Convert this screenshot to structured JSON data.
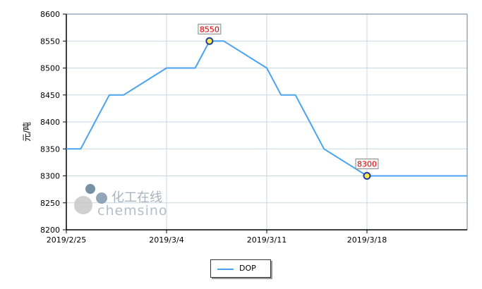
{
  "chart_data": {
    "type": "line",
    "title": "",
    "xlabel": "",
    "ylabel": "元/吨",
    "ylim": [
      8200,
      8600
    ],
    "yticks": [
      8200,
      8250,
      8300,
      8350,
      8400,
      8450,
      8500,
      8550,
      8600
    ],
    "xticks": [
      "2019/2/25",
      "2019/3/4",
      "2019/3/11",
      "2019/3/18"
    ],
    "grid": true,
    "legend_position": "bottom",
    "series": [
      {
        "name": "DOP",
        "color": "#4aa3f0",
        "x": [
          "2019/2/25",
          "2019/2/26",
          "2019/2/27",
          "2019/2/28",
          "2019/3/1",
          "2019/3/4",
          "2019/3/5",
          "2019/3/6",
          "2019/3/7",
          "2019/3/8",
          "2019/3/11",
          "2019/3/12",
          "2019/3/13",
          "2019/3/14",
          "2019/3/15",
          "2019/3/18",
          "2019/3/19",
          "2019/3/20",
          "2019/3/21",
          "2019/3/22",
          "2019/3/25"
        ],
        "y": [
          8350,
          8350,
          8400,
          8450,
          8450,
          8500,
          8500,
          8500,
          8550,
          8550,
          8500,
          8450,
          8450,
          8400,
          8350,
          8300,
          8300,
          8300,
          8300,
          8300,
          8300
        ]
      }
    ],
    "annotations": [
      {
        "x": "2019/3/7",
        "y": 8550,
        "label": "8550"
      },
      {
        "x": "2019/3/18",
        "y": 8300,
        "label": "8300"
      }
    ]
  },
  "watermark": {
    "cn": "化工在线",
    "en": "chemsino"
  }
}
